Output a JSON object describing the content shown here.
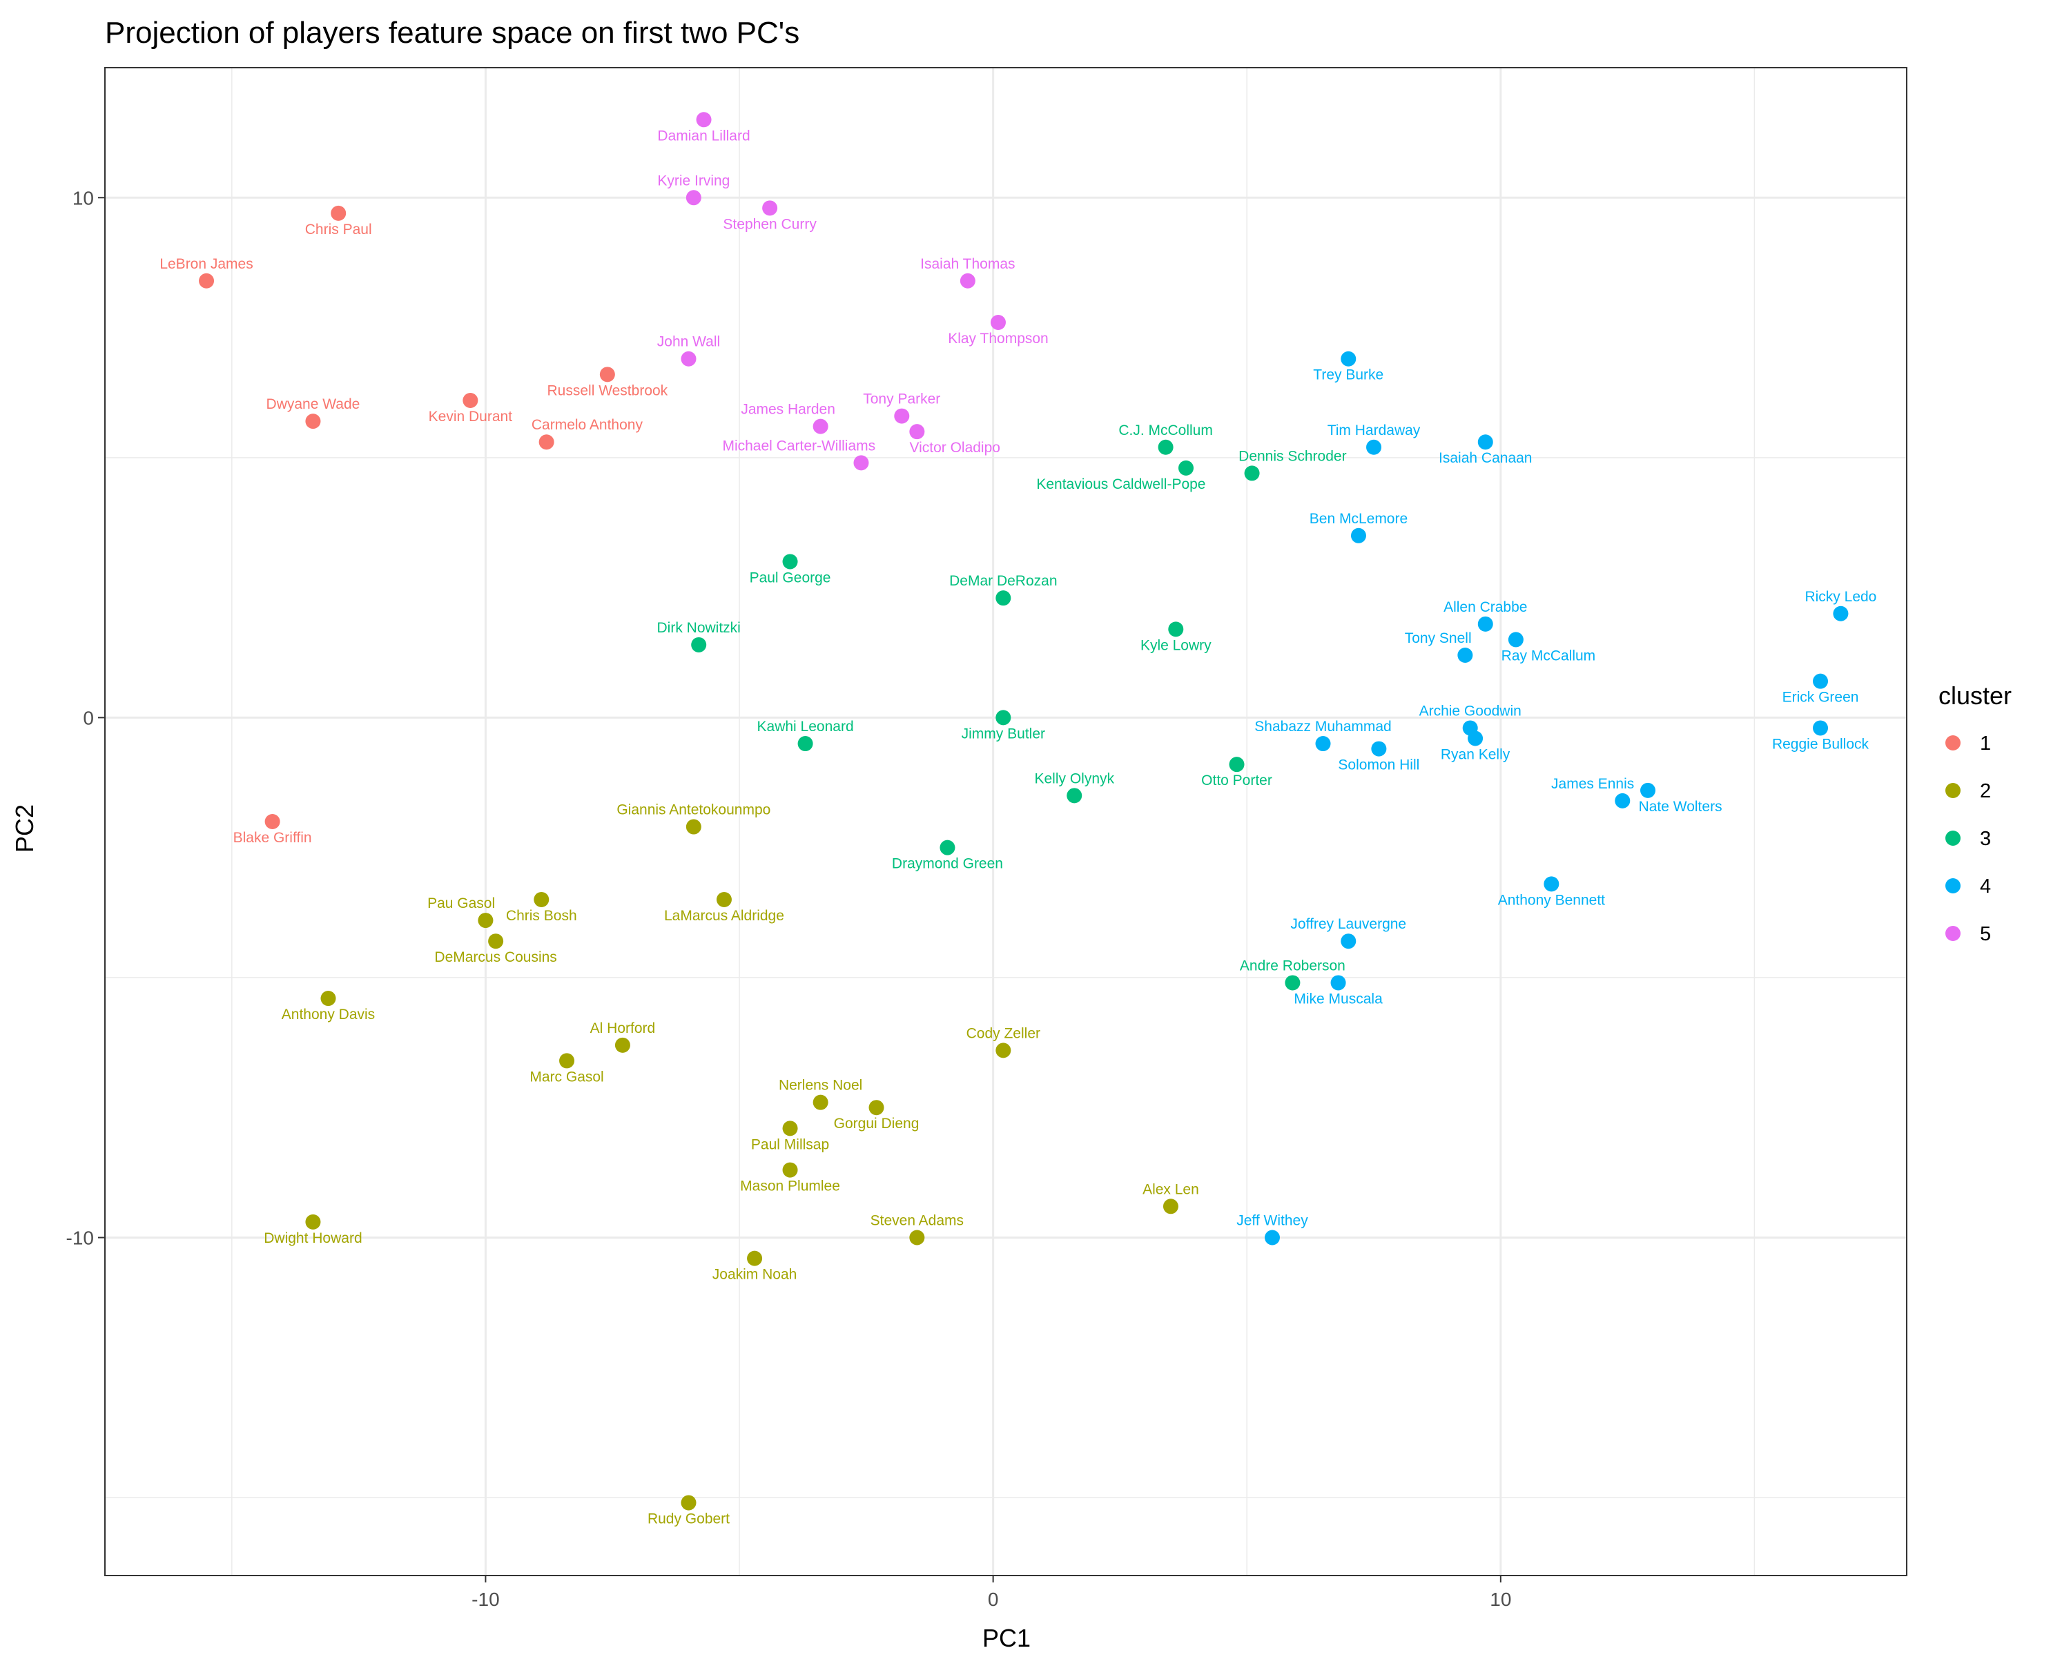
{
  "chart_data": {
    "type": "scatter",
    "title": "Projection of players feature space on first two PC's",
    "xlabel": "PC1",
    "ylabel": "PC2",
    "xlim": [
      -17.5,
      18
    ],
    "ylim": [
      -16.5,
      12.5
    ],
    "xticks": [
      -10,
      0,
      10
    ],
    "yticks": [
      -10,
      0,
      10
    ],
    "grid": true,
    "legend": {
      "title": "cluster",
      "position": "right"
    },
    "colors": {
      "1": "#F8766D",
      "2": "#A3A500",
      "3": "#00BF7D",
      "4": "#00B0F6",
      "5": "#E76BF3"
    },
    "clusters": [
      "1",
      "2",
      "3",
      "4",
      "5"
    ],
    "points": [
      {
        "name": "Chris Paul",
        "x": -12.9,
        "y": 9.7,
        "cluster": "1"
      },
      {
        "name": "LeBron James",
        "x": -15.5,
        "y": 8.4,
        "cluster": "1"
      },
      {
        "name": "Russell Westbrook",
        "x": -7.6,
        "y": 6.6,
        "cluster": "1"
      },
      {
        "name": "Dwyane Wade",
        "x": -13.4,
        "y": 5.7,
        "cluster": "1"
      },
      {
        "name": "Kevin Durant",
        "x": -10.3,
        "y": 6.1,
        "cluster": "1"
      },
      {
        "name": "Carmelo Anthony",
        "x": -8.8,
        "y": 5.3,
        "cluster": "1"
      },
      {
        "name": "Blake Griffin",
        "x": -14.2,
        "y": -2.0,
        "cluster": "1"
      },
      {
        "name": "Giannis Antetokounmpo",
        "x": -5.9,
        "y": -2.1,
        "cluster": "2"
      },
      {
        "name": "Chris Bosh",
        "x": -8.9,
        "y": -3.5,
        "cluster": "2"
      },
      {
        "name": "Pau Gasol",
        "x": -10.0,
        "y": -3.9,
        "cluster": "2"
      },
      {
        "name": "LaMarcus Aldridge",
        "x": -5.3,
        "y": -3.5,
        "cluster": "2"
      },
      {
        "name": "DeMarcus Cousins",
        "x": -9.8,
        "y": -4.3,
        "cluster": "2"
      },
      {
        "name": "Anthony Davis",
        "x": -13.1,
        "y": -5.4,
        "cluster": "2"
      },
      {
        "name": "Al Horford",
        "x": -7.3,
        "y": -6.3,
        "cluster": "2"
      },
      {
        "name": "Marc Gasol",
        "x": -8.4,
        "y": -6.6,
        "cluster": "2"
      },
      {
        "name": "Cody Zeller",
        "x": 0.2,
        "y": -6.4,
        "cluster": "2"
      },
      {
        "name": "Nerlens Noel",
        "x": -3.4,
        "y": -7.4,
        "cluster": "2"
      },
      {
        "name": "Gorgui Dieng",
        "x": -2.3,
        "y": -7.5,
        "cluster": "2"
      },
      {
        "name": "Paul Millsap",
        "x": -4.0,
        "y": -7.9,
        "cluster": "2"
      },
      {
        "name": "Mason Plumlee",
        "x": -4.0,
        "y": -8.7,
        "cluster": "2"
      },
      {
        "name": "Dwight Howard",
        "x": -13.4,
        "y": -9.7,
        "cluster": "2"
      },
      {
        "name": "Alex Len",
        "x": 3.5,
        "y": -9.4,
        "cluster": "2"
      },
      {
        "name": "Joakim Noah",
        "x": -4.7,
        "y": -10.4,
        "cluster": "2"
      },
      {
        "name": "Steven Adams",
        "x": -1.5,
        "y": -10.0,
        "cluster": "2"
      },
      {
        "name": "Rudy Gobert",
        "x": -6.0,
        "y": -15.1,
        "cluster": "2"
      },
      {
        "name": "C.J. McCollum",
        "x": 3.4,
        "y": 5.2,
        "cluster": "3"
      },
      {
        "name": "Kentavious Caldwell-Pope",
        "x": 3.8,
        "y": 4.8,
        "cluster": "3"
      },
      {
        "name": "Dennis Schroder",
        "x": 5.1,
        "y": 4.7,
        "cluster": "3"
      },
      {
        "name": "Paul George",
        "x": -4.0,
        "y": 3.0,
        "cluster": "3"
      },
      {
        "name": "DeMar DeRozan",
        "x": 0.2,
        "y": 2.3,
        "cluster": "3"
      },
      {
        "name": "Kyle Lowry",
        "x": 3.6,
        "y": 1.7,
        "cluster": "3"
      },
      {
        "name": "Dirk Nowitzki",
        "x": -5.8,
        "y": 1.4,
        "cluster": "3"
      },
      {
        "name": "Jimmy Butler",
        "x": 0.2,
        "y": 0.0,
        "cluster": "3"
      },
      {
        "name": "Kawhi Leonard",
        "x": -3.7,
        "y": -0.5,
        "cluster": "3"
      },
      {
        "name": "Otto Porter",
        "x": 4.8,
        "y": -0.9,
        "cluster": "3"
      },
      {
        "name": "Kelly Olynyk",
        "x": 1.6,
        "y": -1.5,
        "cluster": "3"
      },
      {
        "name": "Draymond Green",
        "x": -0.9,
        "y": -2.5,
        "cluster": "3"
      },
      {
        "name": "Andre Roberson",
        "x": 5.9,
        "y": -5.1,
        "cluster": "3"
      },
      {
        "name": "Trey Burke",
        "x": 7.0,
        "y": 6.9,
        "cluster": "4"
      },
      {
        "name": "Tim Hardaway",
        "x": 7.5,
        "y": 5.2,
        "cluster": "4"
      },
      {
        "name": "Isaiah Canaan",
        "x": 9.7,
        "y": 5.3,
        "cluster": "4"
      },
      {
        "name": "Ben McLemore",
        "x": 7.2,
        "y": 3.5,
        "cluster": "4"
      },
      {
        "name": "Allen Crabbe",
        "x": 9.7,
        "y": 1.8,
        "cluster": "4"
      },
      {
        "name": "Tony Snell",
        "x": 9.3,
        "y": 1.2,
        "cluster": "4"
      },
      {
        "name": "Ray McCallum",
        "x": 10.3,
        "y": 1.5,
        "cluster": "4"
      },
      {
        "name": "Ricky Ledo",
        "x": 16.7,
        "y": 2.0,
        "cluster": "4"
      },
      {
        "name": "Erick Green",
        "x": 16.3,
        "y": 0.7,
        "cluster": "4"
      },
      {
        "name": "Shabazz Muhammad",
        "x": 6.5,
        "y": -0.5,
        "cluster": "4"
      },
      {
        "name": "Archie Goodwin",
        "x": 9.4,
        "y": -0.2,
        "cluster": "4"
      },
      {
        "name": "Solomon Hill",
        "x": 7.6,
        "y": -0.6,
        "cluster": "4"
      },
      {
        "name": "Ryan Kelly",
        "x": 9.5,
        "y": -0.4,
        "cluster": "4"
      },
      {
        "name": "Reggie Bullock",
        "x": 16.3,
        "y": -0.2,
        "cluster": "4"
      },
      {
        "name": "Nate Wolters",
        "x": 12.9,
        "y": -1.4,
        "cluster": "4"
      },
      {
        "name": "James Ennis",
        "x": 12.4,
        "y": -1.6,
        "cluster": "4"
      },
      {
        "name": "Anthony Bennett",
        "x": 11.0,
        "y": -3.2,
        "cluster": "4"
      },
      {
        "name": "Joffrey Lauvergne",
        "x": 7.0,
        "y": -4.3,
        "cluster": "4"
      },
      {
        "name": "Mike Muscala",
        "x": 6.8,
        "y": -5.1,
        "cluster": "4"
      },
      {
        "name": "Jeff Withey",
        "x": 5.5,
        "y": -10.0,
        "cluster": "4"
      },
      {
        "name": "Damian Lillard",
        "x": -5.7,
        "y": 11.5,
        "cluster": "5"
      },
      {
        "name": "Kyrie Irving",
        "x": -5.9,
        "y": 10.0,
        "cluster": "5"
      },
      {
        "name": "Stephen Curry",
        "x": -4.4,
        "y": 9.8,
        "cluster": "5"
      },
      {
        "name": "Isaiah Thomas",
        "x": -0.5,
        "y": 8.4,
        "cluster": "5"
      },
      {
        "name": "Klay Thompson",
        "x": 0.1,
        "y": 7.6,
        "cluster": "5"
      },
      {
        "name": "John Wall",
        "x": -6.0,
        "y": 6.9,
        "cluster": "5"
      },
      {
        "name": "Tony Parker",
        "x": -1.8,
        "y": 5.8,
        "cluster": "5"
      },
      {
        "name": "James Harden",
        "x": -3.4,
        "y": 5.6,
        "cluster": "5"
      },
      {
        "name": "Victor Oladipo",
        "x": -1.5,
        "y": 5.5,
        "cluster": "5"
      },
      {
        "name": "Michael Carter-Williams",
        "x": -2.6,
        "y": 4.9,
        "cluster": "5"
      }
    ]
  }
}
